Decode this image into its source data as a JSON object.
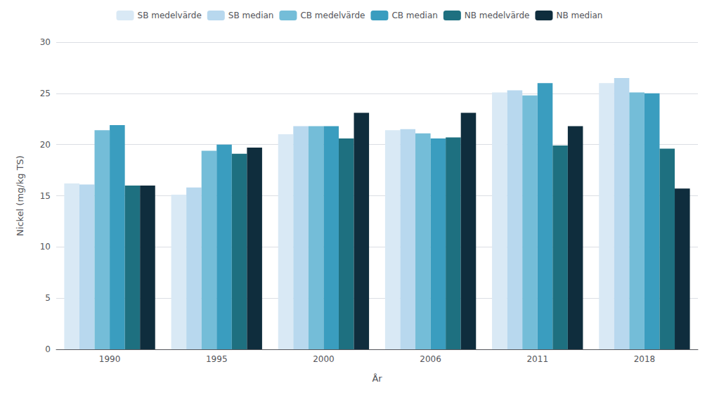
{
  "chart_data": {
    "type": "bar",
    "xlabel": "År",
    "ylabel": "Nickel (mg/kg TS)",
    "categories": [
      "1990",
      "1995",
      "2000",
      "2006",
      "2011",
      "2018"
    ],
    "series": [
      {
        "name": "SB medelvärde",
        "color": "#d9e9f5",
        "values": [
          16.2,
          15.1,
          21.0,
          21.4,
          25.1,
          26.0
        ]
      },
      {
        "name": "SB median",
        "color": "#b8d8ee",
        "values": [
          16.1,
          15.8,
          21.8,
          21.5,
          25.3,
          26.5
        ]
      },
      {
        "name": "CB medelvärde",
        "color": "#74bdd8",
        "values": [
          21.4,
          19.4,
          21.8,
          21.1,
          24.8,
          25.1
        ]
      },
      {
        "name": "CB median",
        "color": "#3a9dbf",
        "values": [
          21.9,
          20.0,
          21.8,
          20.6,
          26.0,
          25.0
        ]
      },
      {
        "name": "NB medelvärde",
        "color": "#1e7080",
        "values": [
          16.0,
          19.1,
          20.6,
          20.7,
          19.9,
          19.6
        ]
      },
      {
        "name": "NB median",
        "color": "#0f2d3d",
        "values": [
          16.0,
          19.7,
          23.1,
          23.1,
          21.8,
          15.7
        ]
      }
    ],
    "ylim": [
      0,
      30
    ],
    "yticks": [
      0,
      5,
      10,
      15,
      20,
      25,
      30
    ],
    "grid": true,
    "legend": "top"
  }
}
